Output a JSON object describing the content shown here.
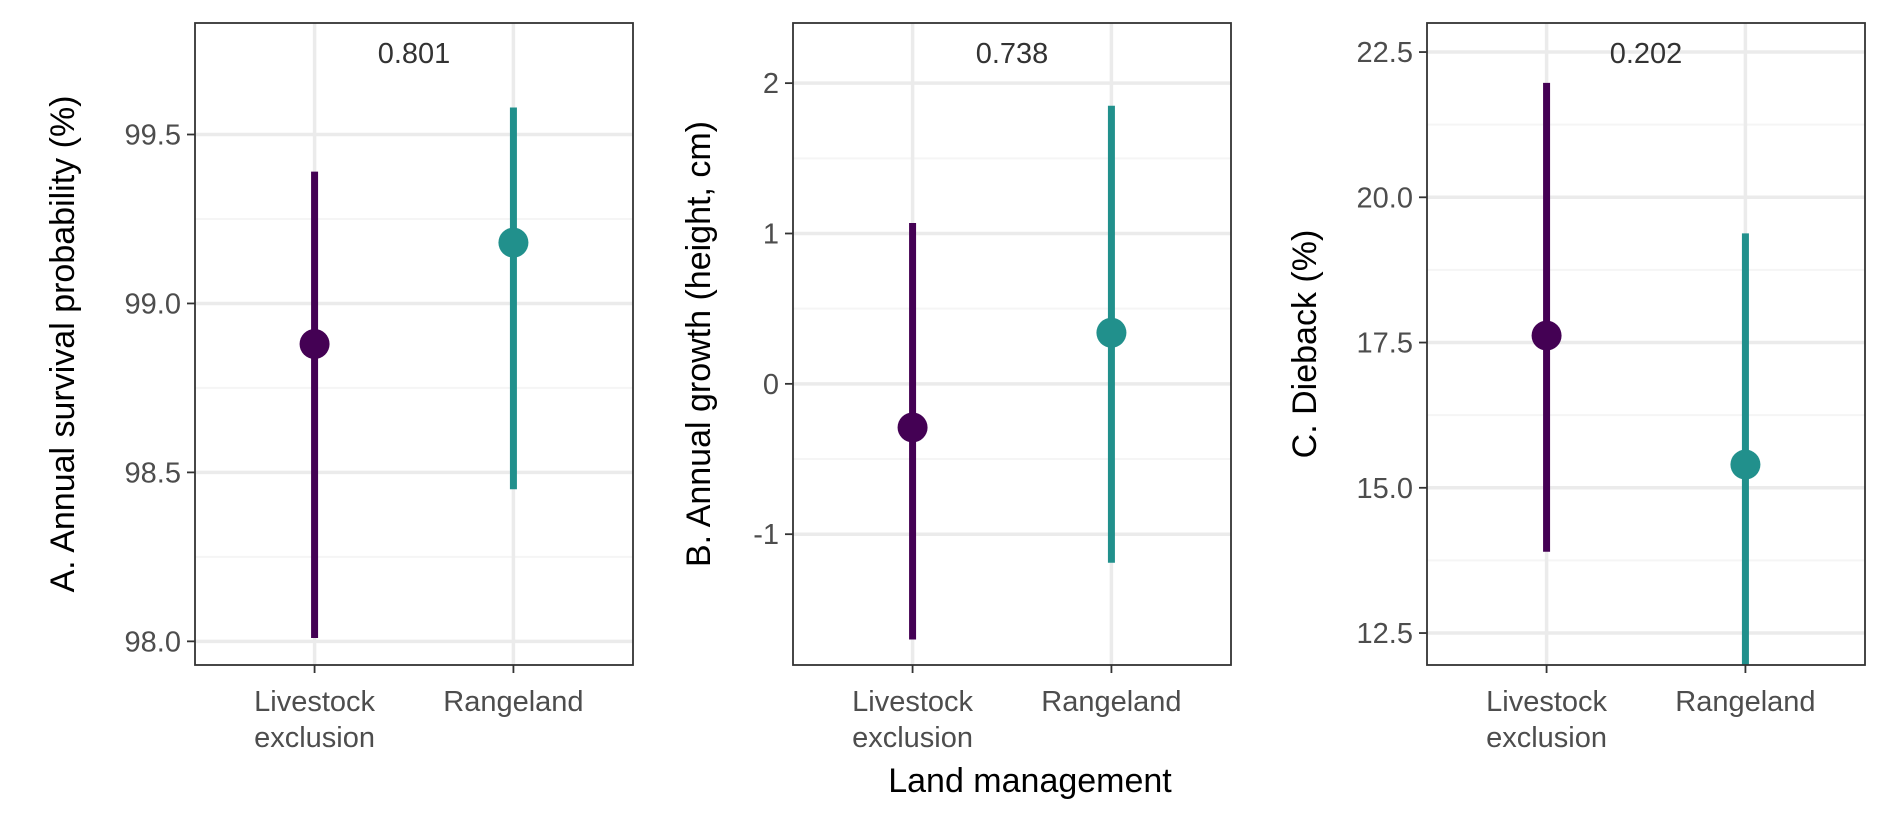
{
  "figure": {
    "shared_xlabel": "Land management"
  },
  "colors": {
    "livestock_exclusion": "#440154",
    "rangeland": "#21908C",
    "grid": "#EBEBEB",
    "panel_border": "#333333",
    "tick_text": "#4D4D4D",
    "title_text": "#000000"
  },
  "chart_data": [
    {
      "type": "scatter",
      "panel": "A",
      "ylabel": "A. Annual survival probability (%)",
      "xlabel": "",
      "annotation": "0.801",
      "categories": [
        "Livestock\nexclusion",
        "Rangeland"
      ],
      "ylim": [
        97.93,
        99.83
      ],
      "yticks": [
        98.0,
        98.5,
        99.0,
        99.5
      ],
      "ytick_labels": [
        "98.0",
        "98.5",
        "99.0",
        "99.5"
      ],
      "series": [
        {
          "category": "Livestock\nexclusion",
          "estimate": 98.88,
          "lower": 98.01,
          "upper": 99.39
        },
        {
          "category": "Rangeland",
          "estimate": 99.18,
          "lower": 98.45,
          "upper": 99.58
        }
      ],
      "grid": true,
      "legend": "none"
    },
    {
      "type": "scatter",
      "panel": "B",
      "ylabel": "B. Annual growth (height, cm)",
      "xlabel": "Land management",
      "annotation": "0.738",
      "categories": [
        "Livestock\nexclusion",
        "Rangeland"
      ],
      "ylim": [
        -1.87,
        2.4
      ],
      "yticks": [
        -1,
        0,
        1,
        2
      ],
      "ytick_labels": [
        "-1",
        "0",
        "1",
        "2"
      ],
      "series": [
        {
          "category": "Livestock\nexclusion",
          "estimate": -0.29,
          "lower": -1.7,
          "upper": 1.07
        },
        {
          "category": "Rangeland",
          "estimate": 0.34,
          "lower": -1.19,
          "upper": 1.85
        }
      ],
      "grid": true,
      "legend": "none"
    },
    {
      "type": "scatter",
      "panel": "C",
      "ylabel": "C. Dieback (%)",
      "xlabel": "",
      "annotation": "0.202",
      "categories": [
        "Livestock\nexclusion",
        "Rangeland"
      ],
      "ylim": [
        11.95,
        23.0
      ],
      "yticks": [
        12.5,
        15.0,
        17.5,
        20.0,
        22.5
      ],
      "ytick_labels": [
        "12.5",
        "15.0",
        "17.5",
        "20.0",
        "22.5"
      ],
      "series": [
        {
          "category": "Livestock\nexclusion",
          "estimate": 17.62,
          "lower": 13.9,
          "upper": 21.97
        },
        {
          "category": "Rangeland",
          "estimate": 15.4,
          "lower": 11.95,
          "upper": 19.38
        }
      ],
      "grid": true,
      "legend": "none"
    }
  ]
}
